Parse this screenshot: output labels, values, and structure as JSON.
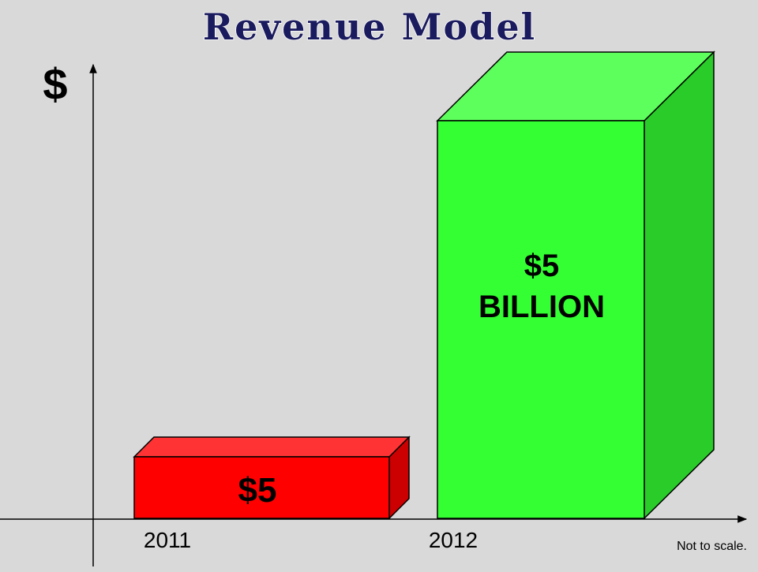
{
  "chart_data": {
    "type": "bar",
    "title": "Revenue Model",
    "ylabel": "$",
    "xlabel": "",
    "categories": [
      "2011",
      "2012"
    ],
    "data_labels": [
      "$5",
      "$5\nBILLION"
    ],
    "note": "Not to scale.",
    "grid": false,
    "legend": "none",
    "bar_colors": [
      "#ff0000",
      "#33ff33"
    ],
    "axis_color": "#000000",
    "title_color": "#1a1a5e"
  }
}
